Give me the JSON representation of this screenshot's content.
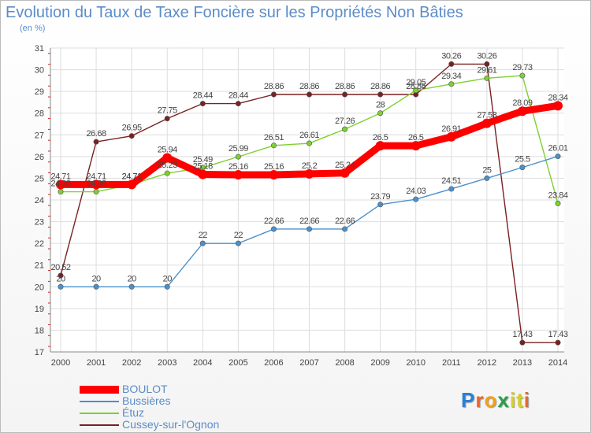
{
  "chart_data": {
    "type": "line",
    "title": "Evolution du Taux de Taxe Foncière sur les Propriétés Non Bâties",
    "ylabel": "(en %)",
    "xlabel": "",
    "x": [
      "2000",
      "2001",
      "2002",
      "2003",
      "2004",
      "2005",
      "2006",
      "2007",
      "2008",
      "2009",
      "2010",
      "2011",
      "2012",
      "2013",
      "2014"
    ],
    "ylim": [
      17,
      31
    ],
    "yticks": [
      17,
      18,
      19,
      20,
      21,
      22,
      23,
      24,
      25,
      26,
      27,
      28,
      29,
      30,
      31
    ],
    "grid": true,
    "legend_position": "bottom-left",
    "series": [
      {
        "name": "Cussey-sur-l'Ognon",
        "color": "#7a2020",
        "values": [
          20.52,
          26.68,
          26.95,
          27.75,
          28.44,
          28.44,
          28.86,
          28.86,
          28.86,
          28.86,
          28.86,
          30.26,
          30.26,
          17.43,
          17.43
        ],
        "labels": [
          "20.52",
          "26.68",
          "26.95",
          "27.75",
          "28.44",
          "28.44",
          "28.86",
          "28.86",
          "28.86",
          "28.86",
          "28.86",
          "30.26",
          "30.26",
          "17.43",
          "17.43"
        ]
      },
      {
        "name": "Étuz",
        "color": "#7ed030",
        "values": [
          24.38,
          24.38,
          24.71,
          25.23,
          25.49,
          25.99,
          26.51,
          26.61,
          27.26,
          28,
          29.05,
          29.34,
          29.61,
          29.73,
          23.84
        ],
        "labels": [
          "24.38",
          "24.38",
          "24.71",
          "25.23",
          "25.49",
          "25.99",
          "26.51",
          "26.61",
          "27.26",
          "28",
          "29.05",
          "29.34",
          "29.61",
          "29.73",
          "23.84"
        ]
      },
      {
        "name": "Bussières",
        "color": "#4a90cc",
        "values": [
          20,
          20,
          20,
          20,
          22,
          22,
          22.66,
          22.66,
          22.66,
          23.79,
          24.03,
          24.51,
          25,
          25.5,
          26.01
        ],
        "labels": [
          "20",
          "20",
          "20",
          "20",
          "22",
          "22",
          "22.66",
          "22.66",
          "22.66",
          "23.79",
          "24.03",
          "24.51",
          "25",
          "25.5",
          "26.01"
        ]
      },
      {
        "name": "BOULOT",
        "color": "#ff0000",
        "values": [
          24.71,
          24.71,
          24.71,
          25.94,
          25.18,
          25.16,
          25.16,
          25.2,
          25.24,
          26.5,
          26.5,
          26.91,
          27.53,
          28.09,
          28.34
        ],
        "labels": [
          "24.71",
          "24.71",
          "24.71",
          "25.94",
          "25.18",
          "25.16",
          "25.16",
          "25.2",
          "25.24",
          "26.5",
          "26.5",
          "26.91",
          "27.53",
          "28.09",
          "28.34"
        ]
      }
    ]
  },
  "legend": {
    "items": [
      "BOULOT",
      "Bussières",
      "Étuz",
      "Cussey-sur-l'Ognon"
    ]
  },
  "logo": {
    "text": "Proxiti"
  }
}
